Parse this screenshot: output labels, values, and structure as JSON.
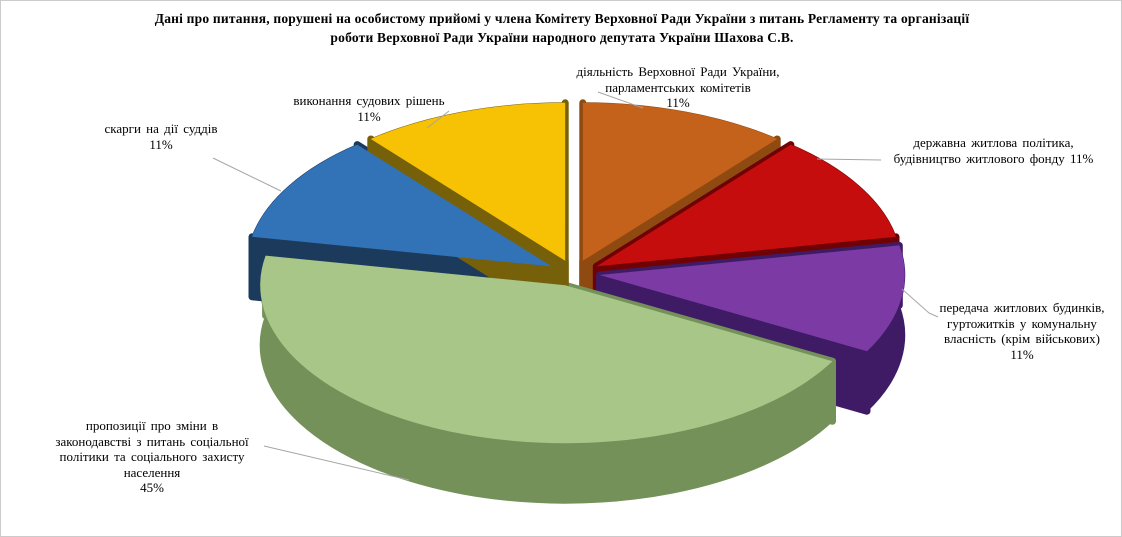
{
  "title": {
    "text": "Дані про питання, порушені на особистому прийомі у члена Комітету Верховної Ради України з питань Регламенту та організації\nроботи Верховної Ради України народного депутата України Шахова С.В."
  },
  "chart_data": {
    "type": "pie",
    "style": "3d-exploded",
    "title": "Дані про питання, порушені на особистому прийомі у члена Комітету Верховної Ради України з питань Регламенту та організації роботи Верховної Ради України народного депутата України Шахова С.В.",
    "unit": "percent",
    "start_angle_deg": 0,
    "direction": "clockwise",
    "legend_position": "none",
    "slices": [
      {
        "name": "діяльність Верховної Ради України, парламентських комітетів",
        "value": 11,
        "color": "#C4611A",
        "side_color": "#8E4A10",
        "label_display": "діяльність  Верховної  Ради  України,\nпарламентських  комітетів\n11%"
      },
      {
        "name": "державна житлова політика, будівництво житлового фонду",
        "value": 11,
        "color": "#C50D0D",
        "side_color": "#6E0205",
        "label_display": "державна житлова політика,\nбудівництво  житлового фонду 11%"
      },
      {
        "name": "передача житлових будинків, гуртожитків у комунальну власність (крім військових)",
        "value": 11,
        "color": "#7C3AA4",
        "side_color": "#3F1B66",
        "label_display": "передача житлових будинків,\nгуртожитків  у комунальну\nвласність  (крім військових)\n11%"
      },
      {
        "name": "пропозиції про зміни в законодавстві з питань соціальної політики та соціального захисту населення",
        "value": 45,
        "color": "#A8C687",
        "side_color": "#75915A",
        "label_display": "пропозиції  про зміни в\nзаконодавстві з питань  соціальної\nполітики  та соціального захисту\nнаселення\n45%"
      },
      {
        "name": "скарги на дії суддів",
        "value": 11,
        "color": "#3272B7",
        "side_color": "#1B3A5C",
        "label_display": "скарги на дії  суддів\n11%"
      },
      {
        "name": "виконання судових рішень",
        "value": 11,
        "color": "#F7C203",
        "side_color": "#76600A",
        "label_display": "виконання  судових рішень\n11%"
      }
    ]
  },
  "colors": {
    "leader_line": "#A6A6A6",
    "border": "#CBCBCB",
    "background": "#FFFFFF",
    "text": "#000000"
  }
}
